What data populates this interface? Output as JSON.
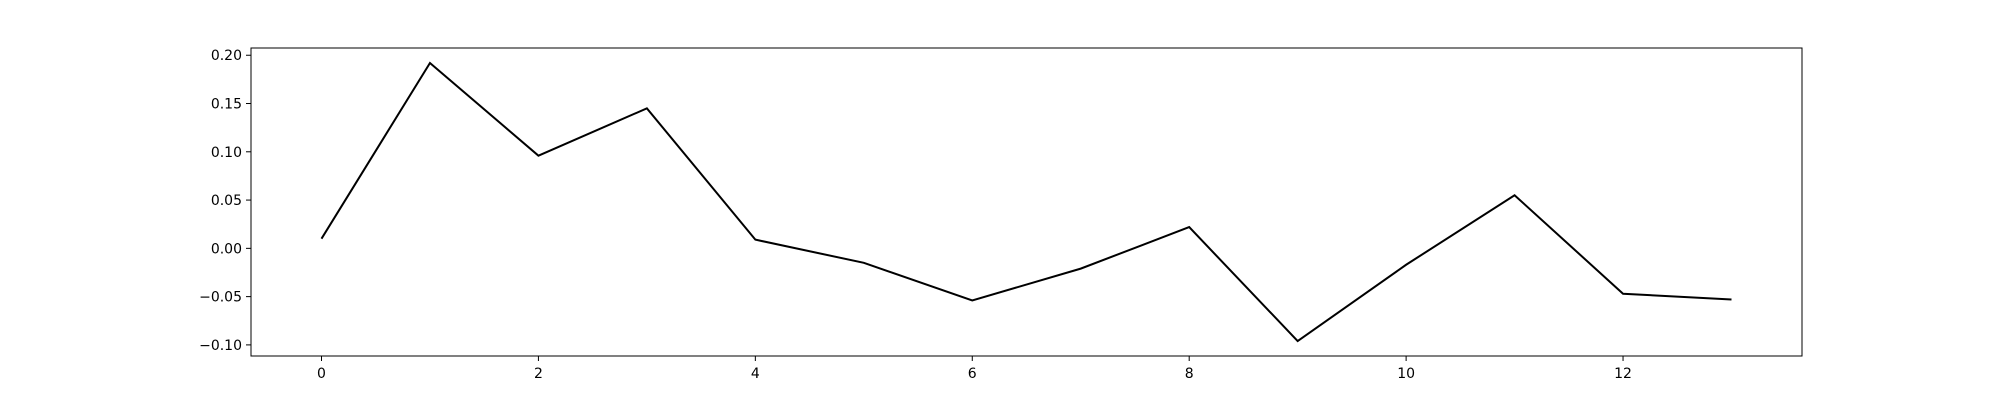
{
  "chart_data": {
    "type": "line",
    "title": "",
    "xlabel": "",
    "ylabel": "",
    "x": [
      0,
      1,
      2,
      3,
      4,
      5,
      6,
      7,
      8,
      9,
      10,
      11,
      12,
      13
    ],
    "series": [
      {
        "values": [
          0.01,
          0.192,
          0.096,
          0.145,
          0.009,
          -0.015,
          -0.054,
          -0.021,
          0.022,
          -0.096,
          -0.017,
          0.055,
          -0.047,
          -0.053
        ],
        "color": "#000000"
      }
    ],
    "xlim": [
      -0.65,
      13.65
    ],
    "ylim": [
      -0.1115,
      0.2075
    ],
    "x_ticks": [
      0,
      2,
      4,
      6,
      8,
      10,
      12
    ],
    "x_tick_labels": [
      "0",
      "2",
      "4",
      "6",
      "8",
      "10",
      "12"
    ],
    "y_ticks": [
      -0.1,
      -0.05,
      0.0,
      0.05,
      0.1,
      0.15,
      0.2
    ],
    "y_tick_labels": [
      "−0.10",
      "−0.05",
      "0.00",
      "0.05",
      "0.10",
      "0.15",
      "0.20"
    ],
    "grid": false,
    "legend": "none"
  }
}
